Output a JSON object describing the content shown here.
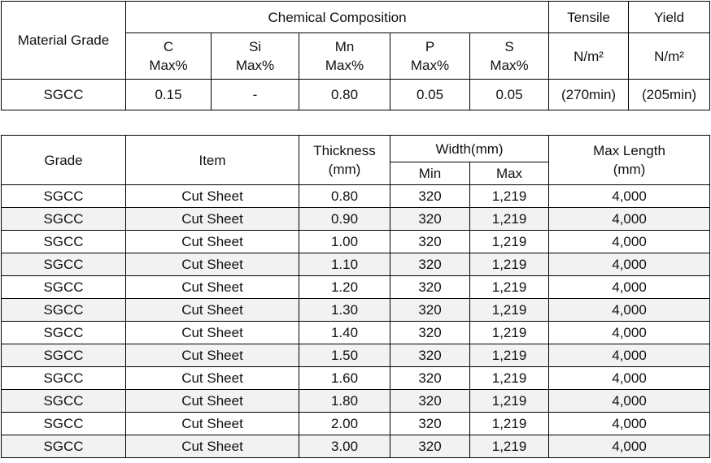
{
  "table1": {
    "header": {
      "material_grade": "Material Grade",
      "chemical_composition": "Chemical Composition",
      "tensile": "Tensile",
      "yield": "Yield",
      "elements": [
        {
          "symbol": "C",
          "unit": "Max%"
        },
        {
          "symbol": "Si",
          "unit": "Max%"
        },
        {
          "symbol": "Mn",
          "unit": "Max%"
        },
        {
          "symbol": "P",
          "unit": "Max%"
        },
        {
          "symbol": "S",
          "unit": "Max%"
        }
      ],
      "strength_units": [
        "N/m²",
        "N/m²"
      ]
    },
    "rows": [
      [
        "SGCC",
        "0.15",
        "-",
        "0.80",
        "0.05",
        "0.05",
        "(270min)",
        "(205min)"
      ]
    ]
  },
  "table2": {
    "header": {
      "grade": "Grade",
      "item": "Item",
      "thickness": "Thickness",
      "thickness_unit": "(mm)",
      "width": "Width(mm)",
      "min": "Min",
      "max": "Max",
      "max_length": "Max Length",
      "max_length_unit": "(mm)"
    },
    "rows": [
      [
        "SGCC",
        "Cut Sheet",
        "0.80",
        "320",
        "1,219",
        "4,000"
      ],
      [
        "SGCC",
        "Cut Sheet",
        "0.90",
        "320",
        "1,219",
        "4,000"
      ],
      [
        "SGCC",
        "Cut Sheet",
        "1.00",
        "320",
        "1,219",
        "4,000"
      ],
      [
        "SGCC",
        "Cut Sheet",
        "1.10",
        "320",
        "1,219",
        "4,000"
      ],
      [
        "SGCC",
        "Cut Sheet",
        "1.20",
        "320",
        "1,219",
        "4,000"
      ],
      [
        "SGCC",
        "Cut Sheet",
        "1.30",
        "320",
        "1,219",
        "4,000"
      ],
      [
        "SGCC",
        "Cut Sheet",
        "1.40",
        "320",
        "1,219",
        "4,000"
      ],
      [
        "SGCC",
        "Cut Sheet",
        "1.50",
        "320",
        "1,219",
        "4,000"
      ],
      [
        "SGCC",
        "Cut Sheet",
        "1.60",
        "320",
        "1,219",
        "4,000"
      ],
      [
        "SGCC",
        "Cut Sheet",
        "1.80",
        "320",
        "1,219",
        "4,000"
      ],
      [
        "SGCC",
        "Cut Sheet",
        "2.00",
        "320",
        "1,219",
        "4,000"
      ],
      [
        "SGCC",
        "Cut Sheet",
        "3.00",
        "320",
        "1,219",
        "4,000"
      ]
    ]
  }
}
